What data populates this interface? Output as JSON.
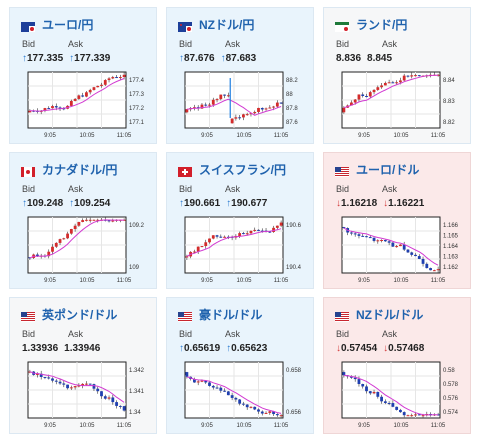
{
  "bid_label": "Bid",
  "ask_label": "Ask",
  "x_ticks": [
    "9:05",
    "10:05",
    "11:05"
  ],
  "cards": [
    {
      "pair": "ユーロ/円",
      "flag": "eu",
      "dir": "up",
      "bid": "177.335",
      "ask": "177.339",
      "yticks": [
        "177.4",
        "177.3",
        "177.2",
        "177.1"
      ],
      "chart_data": {
        "type": "candlestick",
        "ylim": [
          177.05,
          177.45
        ],
        "trend": "up"
      }
    },
    {
      "pair": "NZドル/円",
      "flag": "nz",
      "dir": "up",
      "bid": "87.676",
      "ask": "87.683",
      "yticks": [
        "88.2",
        "88",
        "87.8",
        "87.6"
      ],
      "chart_data": {
        "type": "candlestick",
        "ylim": [
          87.5,
          88.3
        ],
        "trend": "drop"
      }
    },
    {
      "pair": "ランド/円",
      "flag": "za",
      "dir": "none",
      "bid": "8.836",
      "ask": "8.845",
      "yticks": [
        "8.84",
        "8.83",
        "8.82"
      ],
      "chart_data": {
        "type": "candlestick",
        "ylim": [
          8.815,
          8.85
        ],
        "trend": "up"
      }
    },
    {
      "pair": "カナダドル/円",
      "flag": "ca",
      "dir": "up",
      "bid": "109.248",
      "ask": "109.254",
      "yticks": [
        "109.2",
        "109"
      ],
      "chart_data": {
        "type": "candlestick",
        "ylim": [
          108.9,
          109.35
        ],
        "trend": "up"
      }
    },
    {
      "pair": "スイスフラン/円",
      "flag": "ch",
      "dir": "up",
      "bid": "190.661",
      "ask": "190.677",
      "yticks": [
        "190.6",
        "190.4"
      ],
      "chart_data": {
        "type": "candlestick",
        "ylim": [
          190.3,
          190.75
        ],
        "trend": "up"
      }
    },
    {
      "pair": "ユーロ/ドル",
      "flag": "us",
      "dir": "down",
      "bid": "1.16218",
      "ask": "1.16221",
      "yticks": [
        "1.166",
        "1.165",
        "1.164",
        "1.163",
        "1.162"
      ],
      "chart_data": {
        "type": "candlestick",
        "ylim": [
          1.1615,
          1.1665
        ],
        "trend": "down"
      }
    },
    {
      "pair": "英ポンド/ドル",
      "flag": "us",
      "dir": "none",
      "bid": "1.33936",
      "ask": "1.33946",
      "yticks": [
        "1.342",
        "1.341",
        "1.34"
      ],
      "chart_data": {
        "type": "candlestick",
        "ylim": [
          1.3395,
          1.3425
        ],
        "trend": "down"
      }
    },
    {
      "pair": "豪ドル/ドル",
      "flag": "us",
      "dir": "up",
      "bid": "0.65619",
      "ask": "0.65623",
      "yticks": [
        "0.658",
        "0.656"
      ],
      "chart_data": {
        "type": "candlestick",
        "ylim": [
          0.655,
          0.659
        ],
        "trend": "down"
      }
    },
    {
      "pair": "NZドル/ドル",
      "flag": "us",
      "dir": "down",
      "bid": "0.57454",
      "ask": "0.57468",
      "yticks": [
        "0.58",
        "0.578",
        "0.576",
        "0.574"
      ],
      "chart_data": {
        "type": "candlestick",
        "ylim": [
          0.573,
          0.581
        ],
        "trend": "down"
      }
    }
  ]
}
